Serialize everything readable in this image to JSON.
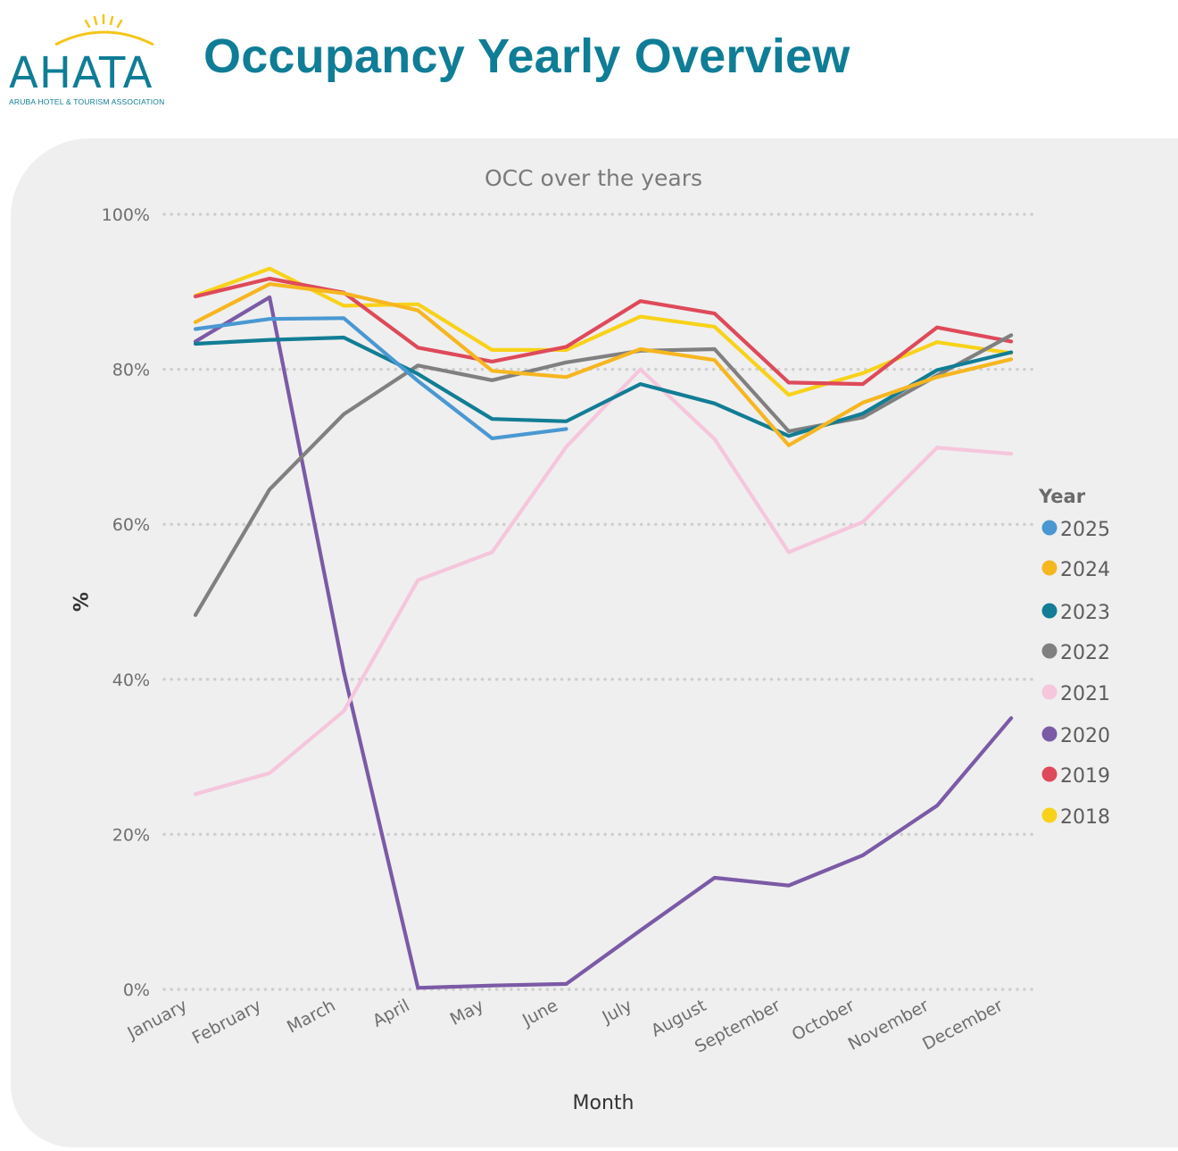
{
  "header": {
    "logo_text": "AHATA",
    "logo_subtitle": "ARUBA HOTEL & TOURISM ASSOCIATION",
    "title": "Occupancy Yearly Overview",
    "brand_color": "#0f7d96",
    "sun_color": "#f5c518"
  },
  "chart_data": {
    "type": "line",
    "title": "OCC over the years",
    "xlabel": "Month",
    "ylabel": "%",
    "ylim": [
      0,
      100
    ],
    "yticks": [
      "0%",
      "20%",
      "40%",
      "60%",
      "80%",
      "100%"
    ],
    "grid": true,
    "legend_title": "Year",
    "legend_position": "right",
    "categories": [
      "January",
      "February",
      "March",
      "April",
      "May",
      "June",
      "July",
      "August",
      "September",
      "October",
      "November",
      "December"
    ],
    "series": [
      {
        "name": "2025",
        "color": "#4a98d2",
        "values": [
          85.2,
          86.5,
          86.6,
          78.5,
          71.1,
          72.3,
          null,
          null,
          null,
          null,
          null,
          null
        ]
      },
      {
        "name": "2024",
        "color": "#f6b620",
        "values": [
          86.1,
          91.0,
          89.8,
          87.6,
          79.8,
          79.0,
          82.6,
          81.2,
          70.2,
          75.7,
          79.0,
          81.3
        ]
      },
      {
        "name": "2023",
        "color": "#127d95",
        "values": [
          83.3,
          83.8,
          84.1,
          79.4,
          73.6,
          73.3,
          78.1,
          75.6,
          71.4,
          74.3,
          79.9,
          82.2
        ]
      },
      {
        "name": "2022",
        "color": "#808080",
        "values": [
          48.3,
          64.5,
          74.2,
          80.5,
          78.6,
          80.9,
          82.4,
          82.6,
          72.0,
          73.8,
          79.2,
          84.4
        ]
      },
      {
        "name": "2021",
        "color": "#f5c6dc",
        "values": [
          25.2,
          27.9,
          35.9,
          52.8,
          56.4,
          70.0,
          80.0,
          71.0,
          56.4,
          60.3,
          69.9,
          69.1
        ]
      },
      {
        "name": "2020",
        "color": "#7b5aa6",
        "values": [
          83.6,
          89.3,
          41.0,
          0.2,
          0.5,
          0.7,
          7.6,
          14.4,
          13.4,
          17.3,
          23.7,
          35.0
        ]
      },
      {
        "name": "2019",
        "color": "#de4a5a",
        "values": [
          89.4,
          91.7,
          89.9,
          82.8,
          81.0,
          82.9,
          88.8,
          87.2,
          78.3,
          78.1,
          85.4,
          83.6
        ]
      },
      {
        "name": "2018",
        "color": "#f8d21a",
        "values": [
          89.5,
          93.0,
          88.2,
          88.4,
          82.5,
          82.5,
          86.8,
          85.5,
          76.7,
          79.5,
          83.5,
          82.1
        ]
      }
    ]
  }
}
